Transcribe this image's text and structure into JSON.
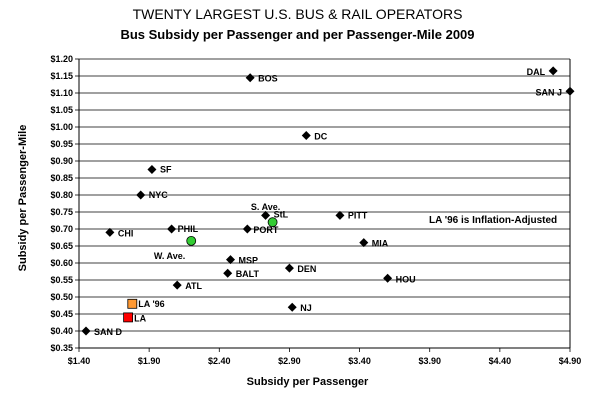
{
  "chart_data": {
    "type": "scatter",
    "title": "TWENTY LARGEST U.S. BUS & RAIL OPERATORS",
    "subtitle": "Bus Subsidy per Passenger and per Passenger-Mile 2009",
    "xlabel": "Subsidy per Passenger",
    "ylabel": "Subsidy per Passenger-Mile",
    "note": "LA '96 is Inflation-Adjusted",
    "xlim": [
      1.4,
      4.9
    ],
    "ylim": [
      0.35,
      1.2
    ],
    "x_ticks": [
      "$1.40",
      "$1.90",
      "$2.40",
      "$2.90",
      "$3.40",
      "$3.90",
      "$4.40",
      "$4.90"
    ],
    "y_ticks": [
      "$0.35",
      "$0.40",
      "$0.45",
      "$0.50",
      "$0.55",
      "$0.60",
      "$0.65",
      "$0.70",
      "$0.75",
      "$0.80",
      "$0.85",
      "$0.90",
      "$0.95",
      "$1.00",
      "$1.05",
      "$1.10",
      "$1.15",
      "$1.20"
    ],
    "grid": "horizontal",
    "colors": {
      "diamond": "#000000",
      "circle": "#33cc33",
      "la": "#ff0000",
      "la96": "#ff9933"
    },
    "points": [
      {
        "label": "SAN D",
        "x": 1.45,
        "y": 0.4,
        "marker": "diamond"
      },
      {
        "label": "CHI",
        "x": 1.62,
        "y": 0.69,
        "marker": "diamond"
      },
      {
        "label": "LA",
        "x": 1.75,
        "y": 0.44,
        "marker": "square-red"
      },
      {
        "label": "LA '96",
        "x": 1.78,
        "y": 0.48,
        "marker": "square-orange"
      },
      {
        "label": "NYC",
        "x": 1.84,
        "y": 0.8,
        "marker": "diamond"
      },
      {
        "label": "SF",
        "x": 1.92,
        "y": 0.875,
        "marker": "diamond"
      },
      {
        "label": "PHIL",
        "x": 2.06,
        "y": 0.7,
        "marker": "diamond"
      },
      {
        "label": "ATL",
        "x": 2.1,
        "y": 0.535,
        "marker": "diamond"
      },
      {
        "label": "W. Ave.",
        "x": 2.2,
        "y": 0.665,
        "marker": "circle"
      },
      {
        "label": "BALT",
        "x": 2.46,
        "y": 0.57,
        "marker": "diamond"
      },
      {
        "label": "MSP",
        "x": 2.48,
        "y": 0.61,
        "marker": "diamond"
      },
      {
        "label": "PORT",
        "x": 2.6,
        "y": 0.7,
        "marker": "diamond"
      },
      {
        "label": "BOS",
        "x": 2.62,
        "y": 1.145,
        "marker": "diamond"
      },
      {
        "label": "StL",
        "x": 2.73,
        "y": 0.74,
        "marker": "diamond"
      },
      {
        "label": "S. Ave.",
        "x": 2.78,
        "y": 0.72,
        "marker": "circle"
      },
      {
        "label": "DEN",
        "x": 2.9,
        "y": 0.585,
        "marker": "diamond"
      },
      {
        "label": "NJ",
        "x": 2.92,
        "y": 0.47,
        "marker": "diamond"
      },
      {
        "label": "DC",
        "x": 3.02,
        "y": 0.975,
        "marker": "diamond"
      },
      {
        "label": "PITT",
        "x": 3.26,
        "y": 0.74,
        "marker": "diamond"
      },
      {
        "label": "MIA",
        "x": 3.43,
        "y": 0.66,
        "marker": "diamond"
      },
      {
        "label": "HOU",
        "x": 3.6,
        "y": 0.555,
        "marker": "diamond"
      },
      {
        "label": "DAL",
        "x": 4.78,
        "y": 1.165,
        "marker": "diamond"
      },
      {
        "label": "SAN J",
        "x": 4.9,
        "y": 1.105,
        "marker": "diamond"
      }
    ]
  }
}
